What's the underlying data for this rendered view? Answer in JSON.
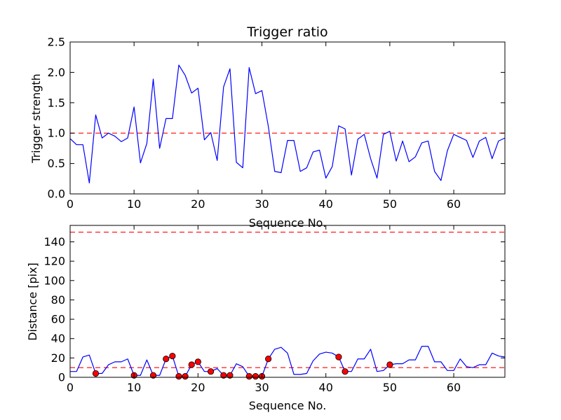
{
  "colors": {
    "line": "#0000ff",
    "threshold": "#ff0000",
    "marker": "#ff0000",
    "frame": "#000000"
  },
  "chart_data": [
    {
      "type": "line",
      "title": "Trigger ratio",
      "xlabel": "Sequence No.",
      "ylabel": "Trigger strength",
      "xlim": [
        0,
        68
      ],
      "ylim": [
        0,
        2.5
      ],
      "xticks": [
        "0",
        "10",
        "20",
        "30",
        "40",
        "50",
        "60"
      ],
      "yticks": [
        "0.0",
        "0.5",
        "1.0",
        "1.5",
        "2.0",
        "2.5"
      ],
      "grid": false,
      "x": [
        0,
        1,
        2,
        3,
        4,
        5,
        6,
        7,
        8,
        9,
        10,
        11,
        12,
        13,
        14,
        15,
        16,
        17,
        18,
        19,
        20,
        21,
        22,
        23,
        24,
        25,
        26,
        27,
        28,
        29,
        30,
        31,
        32,
        33,
        34,
        35,
        36,
        37,
        38,
        39,
        40,
        41,
        42,
        43,
        44,
        45,
        46,
        47,
        48,
        49,
        50,
        51,
        52,
        53,
        54,
        55,
        56,
        57,
        58,
        59,
        60,
        61,
        62,
        63,
        64,
        65,
        66,
        67,
        68
      ],
      "series": [
        {
          "values": [
            0.91,
            0.81,
            0.81,
            0.18,
            1.3,
            0.92,
            1.0,
            0.95,
            0.86,
            0.92,
            1.43,
            0.51,
            0.83,
            1.89,
            0.75,
            1.24,
            1.24,
            2.12,
            1.95,
            1.66,
            1.74,
            0.89,
            1.01,
            0.55,
            1.76,
            2.06,
            0.52,
            0.43,
            2.08,
            1.65,
            1.7,
            1.11,
            0.37,
            0.35,
            0.88,
            0.88,
            0.37,
            0.43,
            0.69,
            0.72,
            0.26,
            0.45,
            1.12,
            1.07,
            0.31,
            0.9,
            0.98,
            0.58,
            0.26,
            0.98,
            1.03,
            0.54,
            0.87,
            0.53,
            0.61,
            0.84,
            0.87,
            0.37,
            0.22,
            0.71,
            0.98,
            0.93,
            0.88,
            0.6,
            0.87,
            0.93,
            0.58,
            0.87,
            0.92
          ]
        }
      ],
      "reference_lines": [
        1.0
      ]
    },
    {
      "type": "line",
      "xlabel": "Sequence No.",
      "ylabel": "Distance [pix]",
      "xlim": [
        0,
        68
      ],
      "ylim": [
        0,
        157
      ],
      "xticks": [
        "0",
        "10",
        "20",
        "30",
        "40",
        "50",
        "60"
      ],
      "yticks": [
        "0",
        "20",
        "40",
        "60",
        "80",
        "100",
        "120",
        "140"
      ],
      "grid": false,
      "x": [
        0,
        1,
        2,
        3,
        4,
        5,
        6,
        7,
        8,
        9,
        10,
        11,
        12,
        13,
        14,
        15,
        16,
        17,
        18,
        19,
        20,
        21,
        22,
        23,
        24,
        25,
        26,
        27,
        28,
        29,
        30,
        31,
        32,
        33,
        34,
        35,
        36,
        37,
        38,
        39,
        40,
        41,
        42,
        43,
        44,
        45,
        46,
        47,
        48,
        49,
        50,
        51,
        52,
        53,
        54,
        55,
        56,
        57,
        58,
        59,
        60,
        61,
        62,
        63,
        64,
        65,
        66,
        67,
        68
      ],
      "series": [
        {
          "values": [
            6,
            6,
            21,
            23,
            4,
            4,
            13,
            16,
            16,
            19,
            2,
            2,
            18,
            2,
            2,
            19,
            22,
            1,
            1,
            13,
            16,
            6,
            6,
            9,
            2,
            2,
            14,
            11,
            1,
            1,
            1,
            19,
            29,
            31,
            25,
            3,
            3,
            4,
            17,
            24,
            26,
            25,
            21,
            6,
            6,
            19,
            19,
            29,
            6,
            7,
            13,
            14,
            14,
            18,
            18,
            32,
            32,
            16,
            16,
            7,
            7,
            19,
            11,
            10,
            13,
            13,
            25,
            22,
            21
          ]
        }
      ],
      "markers": {
        "x": [
          4,
          10,
          13,
          15,
          16,
          17,
          18,
          19,
          20,
          22,
          24,
          25,
          28,
          29,
          30,
          31,
          42,
          43,
          50
        ],
        "y": [
          4,
          2,
          2,
          19,
          22,
          1,
          1,
          13,
          16,
          6,
          2,
          2,
          1,
          1,
          1,
          19,
          21,
          6,
          13
        ]
      },
      "reference_lines": [
        10,
        150
      ]
    }
  ]
}
